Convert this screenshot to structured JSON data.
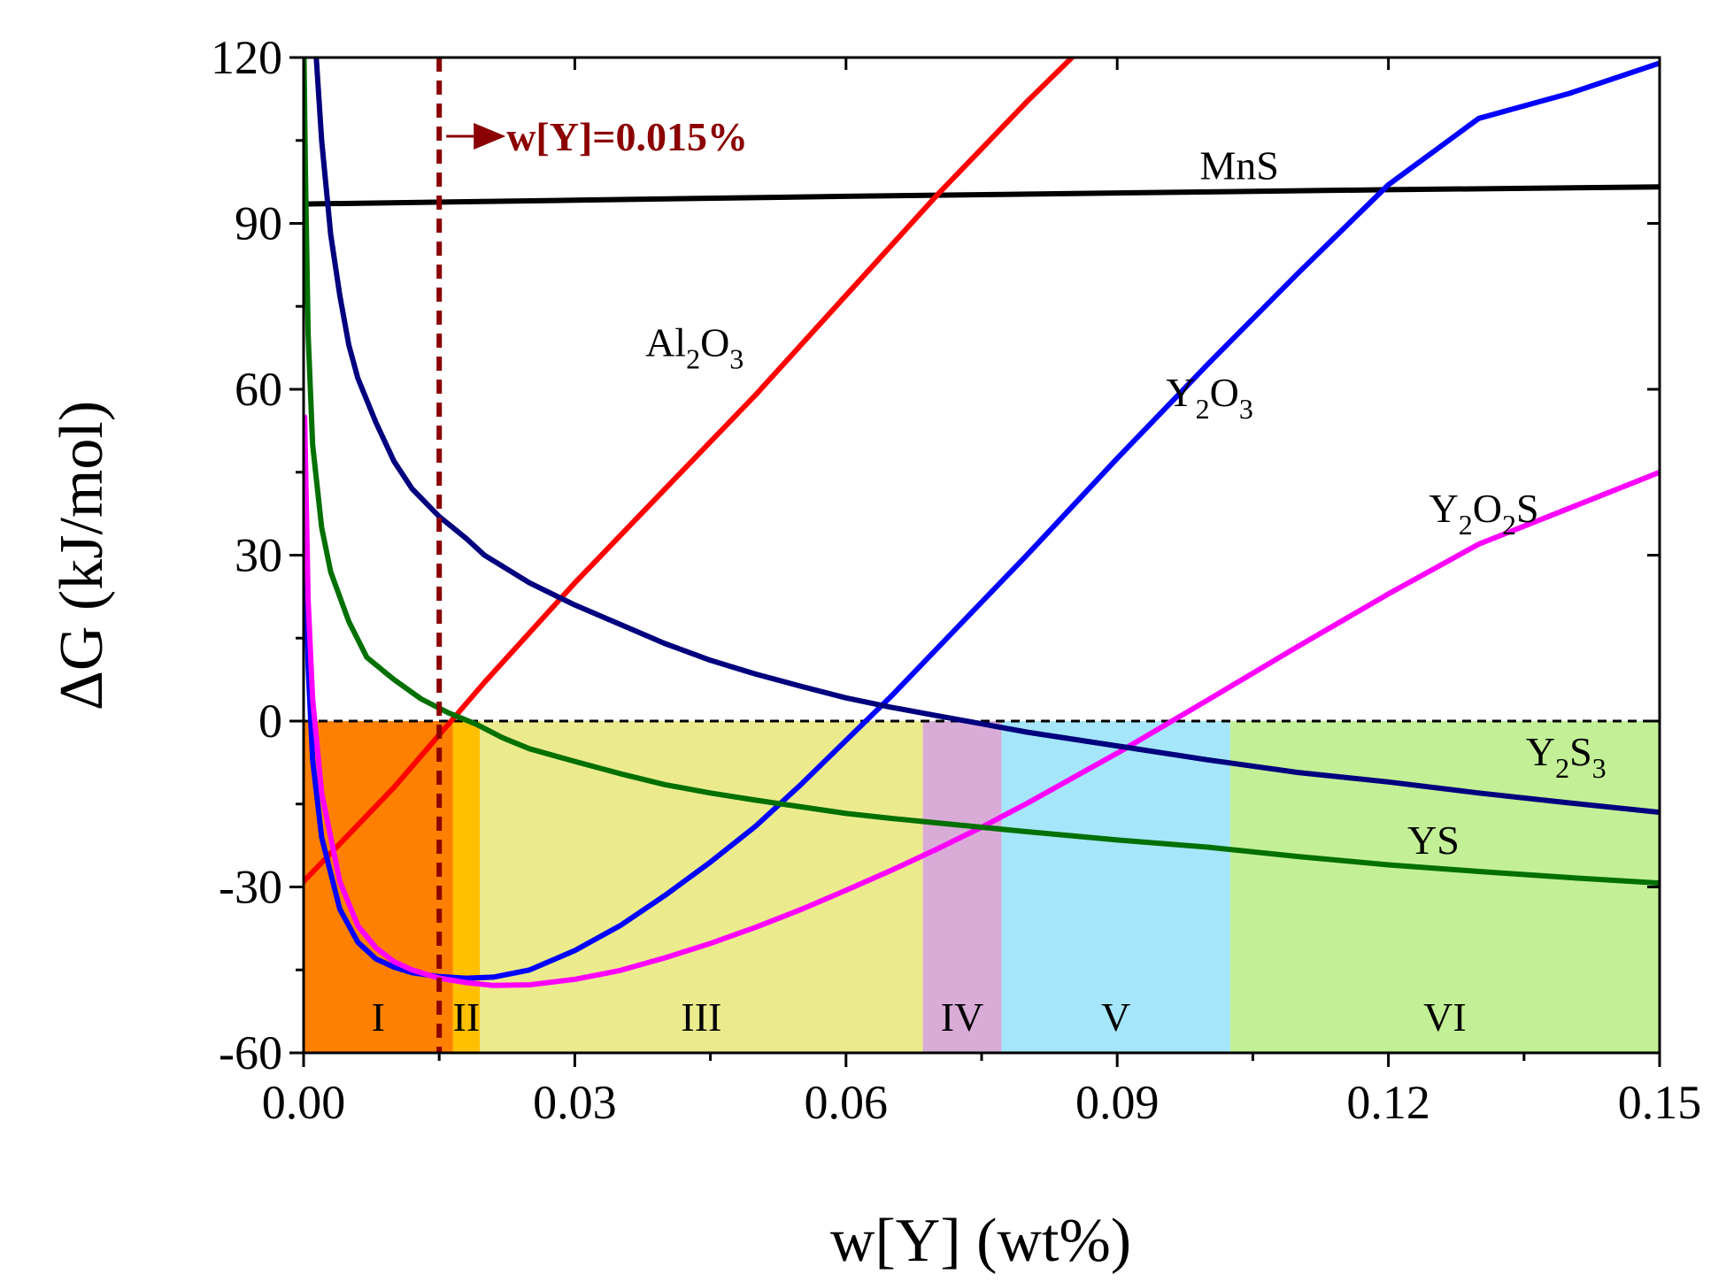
{
  "chart_data": {
    "type": "line",
    "title": "",
    "xlabel": "w[Y] (wt%)",
    "ylabel": "ΔG (kJ/mol)",
    "xlim": [
      0,
      0.15
    ],
    "ylim": [
      -60,
      120
    ],
    "xticks": [
      0.0,
      0.03,
      0.06,
      0.09,
      0.12,
      0.15
    ],
    "xtick_labels": [
      "0.00",
      "0.03",
      "0.06",
      "0.09",
      "0.12",
      "0.15"
    ],
    "yticks": [
      -60,
      -30,
      0,
      30,
      60,
      90,
      120
    ],
    "ytick_labels": [
      "-60",
      "-30",
      "0",
      "30",
      "60",
      "90",
      "120"
    ],
    "zero_line": {
      "y": 0,
      "style": "dashed",
      "color": "#000000"
    },
    "annotation": {
      "text": "w[Y]=0.015%",
      "x": 0.015,
      "color": "#8b0000",
      "style": "dashed vertical line with arrow"
    },
    "regions": [
      {
        "label": "I",
        "x0": 0.0,
        "x1": 0.0165,
        "color": "#ff8000"
      },
      {
        "label": "II",
        "x0": 0.0165,
        "x1": 0.0195,
        "color": "#ffc000"
      },
      {
        "label": "III",
        "x0": 0.0195,
        "x1": 0.0685,
        "color": "#ebeb8e"
      },
      {
        "label": "IV",
        "x0": 0.0685,
        "x1": 0.0772,
        "color": "#d9acd8"
      },
      {
        "label": "V",
        "x0": 0.0772,
        "x1": 0.1025,
        "color": "#a6e6fa"
      },
      {
        "label": "VI",
        "x0": 0.1025,
        "x1": 0.15,
        "color": "#c3f096"
      }
    ],
    "series": [
      {
        "name": "MnS",
        "label_parts": [
          {
            "t": "MnS",
            "sub": false
          }
        ],
        "color": "#000000",
        "x": [
          0.0,
          0.03,
          0.06,
          0.09,
          0.12,
          0.15
        ],
        "y": [
          93.5,
          94.2,
          94.9,
          95.5,
          96.1,
          96.6
        ]
      },
      {
        "name": "Al2O3",
        "label_parts": [
          {
            "t": "Al",
            "sub": false
          },
          {
            "t": "2",
            "sub": true
          },
          {
            "t": "O",
            "sub": false
          },
          {
            "t": "3",
            "sub": true
          }
        ],
        "color": "#ff0000",
        "x": [
          0.0,
          0.01,
          0.02,
          0.03,
          0.04,
          0.05,
          0.06,
          0.07,
          0.08,
          0.085
        ],
        "y": [
          -29,
          -12,
          7,
          25,
          42,
          59,
          77,
          95,
          112,
          120
        ]
      },
      {
        "name": "Y2O3",
        "label_parts": [
          {
            "t": "Y",
            "sub": false
          },
          {
            "t": "2",
            "sub": true
          },
          {
            "t": "O",
            "sub": false
          },
          {
            "t": "3",
            "sub": true
          }
        ],
        "color": "#0000ff",
        "x": [
          0.00012,
          0.0005,
          0.001,
          0.002,
          0.004,
          0.006,
          0.008,
          0.01,
          0.012,
          0.015,
          0.018,
          0.021,
          0.025,
          0.03,
          0.035,
          0.04,
          0.045,
          0.05,
          0.055,
          0.06,
          0.065,
          0.07,
          0.075,
          0.08,
          0.09,
          0.1,
          0.11,
          0.12,
          0.13,
          0.14,
          0.15
        ],
        "y": [
          40,
          10,
          -7,
          -21,
          -34,
          -40,
          -43,
          -44.5,
          -45.5,
          -46.2,
          -46.5,
          -46.3,
          -45,
          -41.5,
          -37,
          -31.5,
          -25.5,
          -19,
          -11.5,
          -3.5,
          4.5,
          13,
          21.5,
          30,
          47.5,
          64.5,
          81,
          97,
          109,
          113.5,
          119
        ]
      },
      {
        "name": "Y2O2S",
        "label_parts": [
          {
            "t": "Y",
            "sub": false
          },
          {
            "t": "2",
            "sub": true
          },
          {
            "t": "O",
            "sub": false
          },
          {
            "t": "2",
            "sub": true
          },
          {
            "t": "S",
            "sub": false
          }
        ],
        "color": "#ff00ff",
        "x": [
          0.00012,
          0.0005,
          0.001,
          0.002,
          0.004,
          0.006,
          0.008,
          0.01,
          0.012,
          0.015,
          0.018,
          0.021,
          0.025,
          0.03,
          0.035,
          0.04,
          0.045,
          0.05,
          0.055,
          0.06,
          0.065,
          0.07,
          0.075,
          0.08,
          0.09,
          0.1,
          0.11,
          0.12,
          0.13,
          0.14,
          0.15
        ],
        "y": [
          55,
          22,
          4,
          -13,
          -29,
          -37,
          -41,
          -43.5,
          -45,
          -46.5,
          -47.3,
          -47.8,
          -47.7,
          -46.7,
          -45.1,
          -42.8,
          -40.2,
          -37.3,
          -34.1,
          -30.6,
          -27,
          -23.2,
          -19.2,
          -14.9,
          -5.8,
          3.8,
          13.5,
          23,
          32,
          38.5,
          45
        ]
      },
      {
        "name": "Y2S3",
        "label_parts": [
          {
            "t": "Y",
            "sub": false
          },
          {
            "t": "2",
            "sub": true
          },
          {
            "t": "S",
            "sub": false
          },
          {
            "t": "3",
            "sub": true
          }
        ],
        "color": "#00007f",
        "x": [
          0.0014,
          0.002,
          0.003,
          0.004,
          0.005,
          0.006,
          0.008,
          0.01,
          0.012,
          0.015,
          0.018,
          0.02,
          0.025,
          0.03,
          0.035,
          0.04,
          0.045,
          0.05,
          0.055,
          0.06,
          0.065,
          0.07,
          0.075,
          0.08,
          0.09,
          0.1,
          0.11,
          0.12,
          0.13,
          0.14,
          0.15
        ],
        "y": [
          120,
          105,
          88,
          77,
          68,
          62,
          54,
          47,
          42,
          37,
          33,
          30,
          25,
          21,
          17.5,
          14,
          11,
          8.5,
          6.3,
          4.2,
          2.5,
          1,
          -0.5,
          -2,
          -4.5,
          -7,
          -9.3,
          -11,
          -13,
          -14.8,
          -16.5
        ]
      },
      {
        "name": "YS",
        "label_parts": [
          {
            "t": "YS",
            "sub": false
          }
        ],
        "color": "#007000",
        "x": [
          5e-05,
          0.0002,
          0.0005,
          0.001,
          0.002,
          0.003,
          0.005,
          0.007,
          0.01,
          0.013,
          0.016,
          0.019,
          0.022,
          0.025,
          0.03,
          0.035,
          0.04,
          0.045,
          0.05,
          0.055,
          0.06,
          0.065,
          0.07,
          0.075,
          0.08,
          0.09,
          0.1,
          0.11,
          0.12,
          0.13,
          0.14,
          0.15
        ],
        "y": [
          120,
          100,
          70,
          50,
          35,
          27,
          18,
          11.5,
          7.5,
          4,
          1.5,
          -0.5,
          -3,
          -5,
          -7.3,
          -9.5,
          -11.5,
          -13,
          -14.3,
          -15.5,
          -16.7,
          -17.6,
          -18.4,
          -19.2,
          -20,
          -21.5,
          -22.8,
          -24.5,
          -26,
          -27.2,
          -28.3,
          -29.3
        ]
      }
    ],
    "series_labels": [
      {
        "series": "MnS",
        "x": 0.1035,
        "y": 98,
        "anchor": "middle"
      },
      {
        "series": "Al2O3",
        "x": 0.0378,
        "y": 66,
        "anchor": "start"
      },
      {
        "series": "Y2O3",
        "x": 0.0954,
        "y": 57,
        "anchor": "start"
      },
      {
        "series": "Y2O2S",
        "x": 0.1245,
        "y": 36,
        "anchor": "start"
      },
      {
        "series": "Y2S3",
        "x": 0.1352,
        "y": -8,
        "anchor": "start"
      },
      {
        "series": "YS",
        "x": 0.1221,
        "y": -24,
        "anchor": "start"
      }
    ]
  }
}
